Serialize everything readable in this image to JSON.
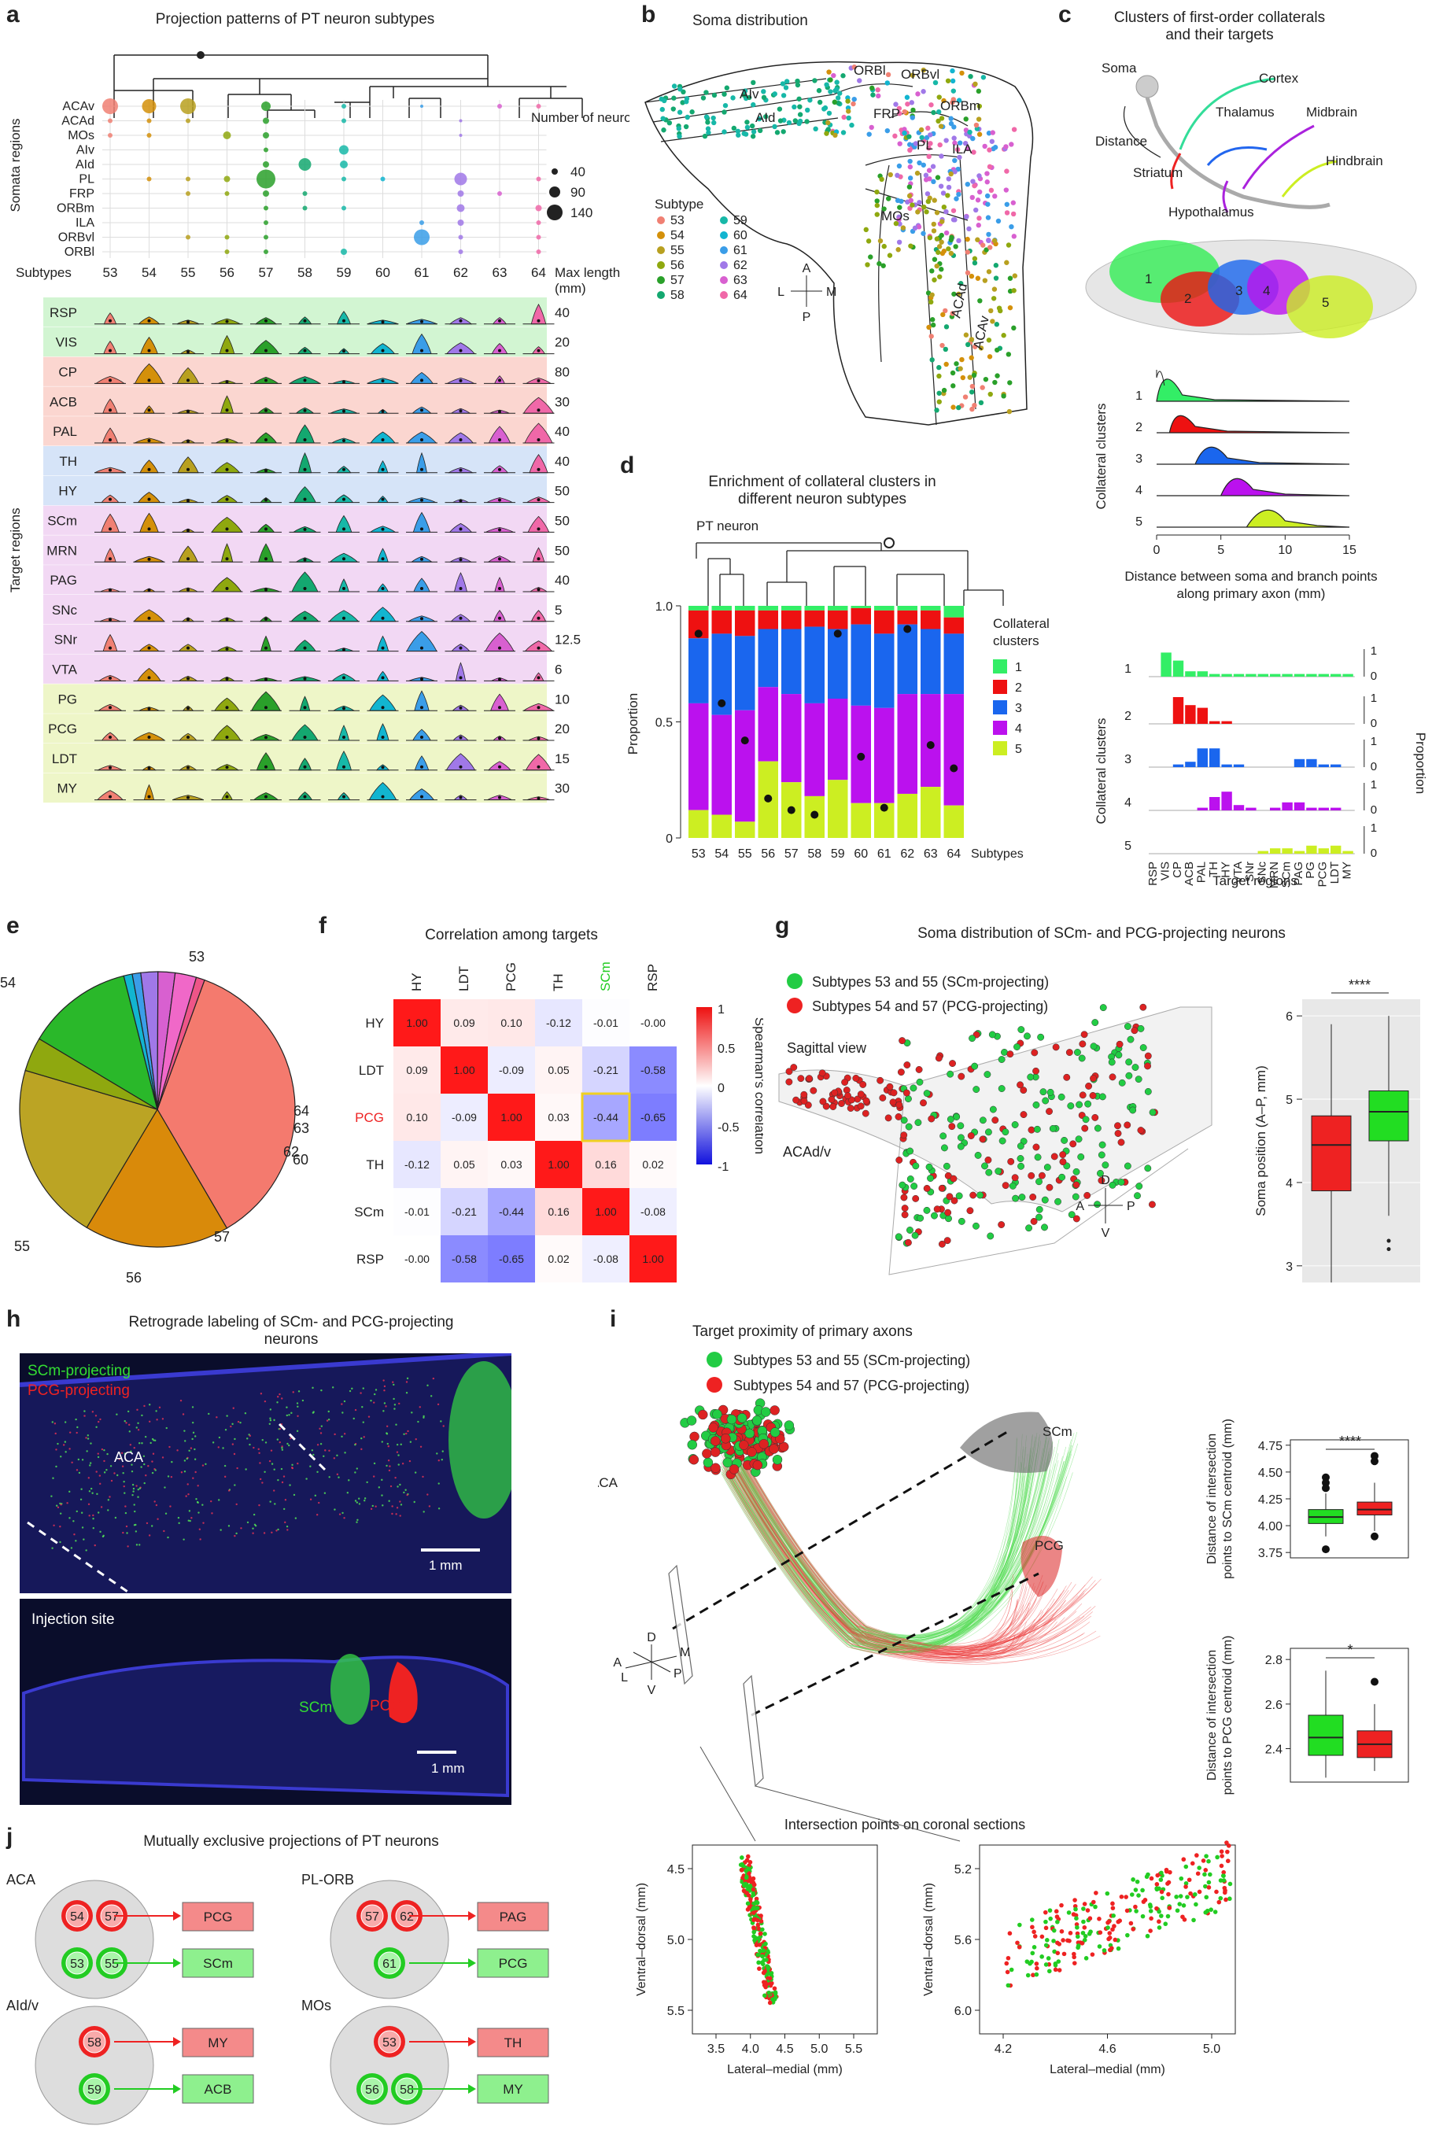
{
  "panel_a": {
    "letter": "a",
    "title": "Projection patterns of PT neuron subtypes",
    "somata_rows": [
      "ACAv",
      "ACAd",
      "MOs",
      "AIv",
      "AId",
      "PL",
      "FRP",
      "ORBm",
      "ILA",
      "ORBvl",
      "ORBl"
    ],
    "somata_axis_label": "Somata regions",
    "subtypes_label": "Subtypes",
    "subtypes": [
      "53",
      "54",
      "55",
      "56",
      "57",
      "58",
      "59",
      "60",
      "61",
      "62",
      "63",
      "64"
    ],
    "size_legend_title": "Number of neurons",
    "size_legend": [
      "40",
      "90",
      "140"
    ],
    "maxlen_title": "Max length (mm)",
    "target_axis_label": "Target regions",
    "target_rows": [
      "RSP",
      "VIS",
      "CP",
      "ACB",
      "PAL",
      "TH",
      "HY",
      "SCm",
      "MRN",
      "PAG",
      "SNc",
      "SNr",
      "VTA",
      "PG",
      "PCG",
      "LDT",
      "MY"
    ],
    "max_lengths": [
      "40",
      "20",
      "80",
      "30",
      "40",
      "40",
      "50",
      "50",
      "50",
      "40",
      "5",
      "12.5",
      "6",
      "10",
      "20",
      "15",
      "30"
    ]
  },
  "panel_b": {
    "letter": "b",
    "title": "Soma distribution",
    "regions": [
      "AIv",
      "AId",
      "ORBl",
      "ORBvl",
      "ORBm",
      "FRP",
      "PL",
      "ILA",
      "MOs",
      "ACAd",
      "ACAv"
    ],
    "legend_title": "Subtype",
    "legend": [
      "53",
      "54",
      "55",
      "56",
      "57",
      "58",
      "59",
      "60",
      "61",
      "62",
      "63",
      "64"
    ],
    "compass": {
      "a": "A",
      "p": "P",
      "l": "L",
      "m": "M"
    }
  },
  "panel_c": {
    "letter": "c",
    "title": "Clusters of first-order collaterals and their targets",
    "schematic_labels": [
      "Soma",
      "Cortex",
      "Thalamus",
      "Midbrain",
      "Distance",
      "Hindbrain",
      "Striatum",
      "Hypothalamus"
    ],
    "brain_labels": [
      "1",
      "2",
      "3",
      "4",
      "5"
    ],
    "density_ylabel": "Collateral clusters",
    "density_xlabel": "Distance between soma and branch points along primary axon (mm)",
    "density_xticks": [
      "0",
      "5",
      "10",
      "15"
    ],
    "bar_ylabel": "Collateral clusters",
    "bar_ylabel_right": "Proportion",
    "bar_xlabel": "Target regions",
    "bar_targets": [
      "RSP",
      "VIS",
      "CP",
      "ACB",
      "PAL",
      "TH",
      "HY",
      "VTA",
      "SNr",
      "SNc",
      "MRN",
      "SCm",
      "PAG",
      "PG",
      "PCG",
      "LDT",
      "MY"
    ],
    "proportion_ticks": [
      "1",
      "0"
    ]
  },
  "panel_d": {
    "letter": "d",
    "title": "Enrichment of collateral clusters in different neuron subtypes",
    "root_label": "PT neuron",
    "ylabel": "Proportion",
    "yticks": [
      "1.0",
      "0.5",
      "0"
    ],
    "xlabel": "Subtypes",
    "legend_title": "Collateral clusters",
    "legend": [
      "1",
      "2",
      "3",
      "4",
      "5"
    ]
  },
  "panel_e": {
    "letter": "e",
    "labels": [
      "53",
      "54",
      "55",
      "56",
      "57",
      "60",
      "62",
      "63",
      "64"
    ]
  },
  "panel_f": {
    "letter": "f",
    "title": "Correlation among targets",
    "cols": [
      "HY",
      "LDT",
      "PCG",
      "TH",
      "SCm",
      "RSP"
    ],
    "rows": [
      "HY",
      "LDT",
      "PCG",
      "TH",
      "SCm",
      "RSP"
    ],
    "matrix": [
      [
        "1.00",
        "0.09",
        "0.10",
        "-0.12",
        "-0.01",
        "-0.00"
      ],
      [
        "0.09",
        "1.00",
        "-0.09",
        "0.05",
        "-0.21",
        "-0.58"
      ],
      [
        "0.10",
        "-0.09",
        "1.00",
        "0.03",
        "-0.44",
        "-0.65"
      ],
      [
        "-0.12",
        "0.05",
        "0.03",
        "1.00",
        "0.16",
        "0.02"
      ],
      [
        "-0.01",
        "-0.21",
        "-0.44",
        "0.16",
        "1.00",
        "-0.08"
      ],
      [
        "-0.00",
        "-0.58",
        "-0.65",
        "0.02",
        "-0.08",
        "1.00"
      ]
    ],
    "colorbar_ticks": [
      "1",
      "0.5",
      "0",
      "-0.5",
      "-1"
    ],
    "colorbar_label": "Spearman's correlation"
  },
  "panel_g": {
    "letter": "g",
    "title": "Soma distribution of SCm- and PCG-projecting neurons",
    "legend": [
      "Subtypes 53 and 55 (SCm-projecting)",
      "Subtypes 54 and 57 (PCG-projecting)"
    ],
    "view_label": "Sagittal view",
    "region_label": "ACAd/v",
    "compass": {
      "d": "D",
      "v": "V",
      "a": "A",
      "p": "P"
    },
    "box_ylabel": "Soma position (A–P, mm)",
    "box_yticks": [
      "6",
      "5",
      "4",
      "3"
    ],
    "sig": "****"
  },
  "panel_h": {
    "letter": "h",
    "title": "Retrograde labeling of SCm- and PCG-projecting neurons",
    "legend_green": "SCm-projecting",
    "legend_red": "PCG-projecting",
    "aca_label": "ACA",
    "scale": "1 mm",
    "injection_title": "Injection site",
    "scm": "SCm",
    "pcg": "PCG",
    "scale2": "1 mm"
  },
  "panel_i": {
    "letter": "i",
    "title": "Target proximity of primary axons",
    "legend": [
      "Subtypes 53 and 55 (SCm-projecting)",
      "Subtypes 54 and 57 (PCG-projecting)"
    ],
    "aca_label": "ACA",
    "scm_label": "SCm",
    "pcg_label": "PCG",
    "compass": {
      "d": "D",
      "v": "V",
      "a": "A",
      "p": "P",
      "l": "L",
      "m": "M"
    },
    "box1_ylabel": "Distance of intersection points to SCm centroid (mm)",
    "box1_yticks": [
      "4.75",
      "4.50",
      "4.25",
      "4.00",
      "3.75"
    ],
    "box1_sig": "****",
    "box2_ylabel": "Distance of intersection points to PCG centroid (mm)",
    "box2_yticks": [
      "2.8",
      "2.6",
      "2.4"
    ],
    "box2_sig": "*",
    "coronal_title": "Intersection points on coronal sections",
    "sc1_ylabel": "Ventral–dorsal (mm)",
    "sc1_yticks": [
      "4.5",
      "5.0",
      "5.5"
    ],
    "sc1_xlabel": "Lateral–medial (mm)",
    "sc1_xticks": [
      "3.5",
      "4.0",
      "4.5",
      "5.0",
      "5.5"
    ],
    "sc2_ylabel": "Ventral–dorsal (mm)",
    "sc2_yticks": [
      "5.2",
      "5.6",
      "6.0"
    ],
    "sc2_xlabel": "Lateral–medial (mm)",
    "sc2_xticks": [
      "4.2",
      "4.6",
      "5.0"
    ]
  },
  "panel_j": {
    "letter": "j",
    "title": "Mutually exclusive projections of PT neurons",
    "groups": [
      {
        "name": "ACA",
        "top": [
          "54",
          "57"
        ],
        "top_target": "PCG",
        "bottom": [
          "53",
          "55"
        ],
        "bottom_target": "SCm"
      },
      {
        "name": "PL-ORB",
        "top": [
          "57",
          "62"
        ],
        "top_target": "PAG",
        "bottom": [
          "61"
        ],
        "bottom_target": "PCG"
      },
      {
        "name": "AId/v",
        "top": [
          "58"
        ],
        "top_target": "MY",
        "bottom": [
          "59"
        ],
        "bottom_target": "ACB"
      },
      {
        "name": "MOs",
        "top": [
          "53"
        ],
        "top_target": "TH",
        "bottom": [
          "56",
          "58"
        ],
        "bottom_target": "MY"
      }
    ]
  },
  "colors": {
    "subtypes": [
      "#f08073",
      "#d4900a",
      "#b8a020",
      "#8fa80f",
      "#2aa02a",
      "#14a870",
      "#17b8a8",
      "#12b5d0",
      "#3a9de8",
      "#a078e8",
      "#d860d0",
      "#f068a8"
    ],
    "clusters": [
      "#33ee66",
      "#ee1111",
      "#1a66ee",
      "#bb11ee",
      "#ccee22"
    ],
    "green": "#22cc22",
    "red": "#ee2222"
  }
}
